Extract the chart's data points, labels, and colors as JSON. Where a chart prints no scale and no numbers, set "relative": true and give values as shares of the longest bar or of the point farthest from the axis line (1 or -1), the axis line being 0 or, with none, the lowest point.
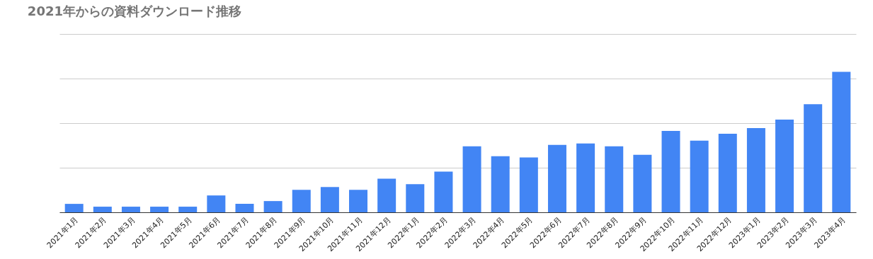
{
  "chart_data": {
    "type": "bar",
    "title": "2021年からの資料ダウンロード推移",
    "relative": true,
    "grid": "y",
    "categories": [
      "2021年1月",
      "2021年2月",
      "2021年3月",
      "2021年4月",
      "2021年5月",
      "2021年6月",
      "2021年7月",
      "2021年8月",
      "2021年9月",
      "2021年10月",
      "2021年11月",
      "2021年12月",
      "2022年1月",
      "2022年2月",
      "2022年3月",
      "2022年4月",
      "2022年5月",
      "2022年6月",
      "2022年7月",
      "2022年8月",
      "2022年9月",
      "2022年10月",
      "2022年11月",
      "2022年12月",
      "2023年1月",
      "2023年2月",
      "2023年3月",
      "2023年4月"
    ],
    "values": [
      0.06,
      0.04,
      0.04,
      0.04,
      0.04,
      0.12,
      0.06,
      0.08,
      0.16,
      0.18,
      0.16,
      0.24,
      0.2,
      0.29,
      0.47,
      0.4,
      0.39,
      0.48,
      0.49,
      0.47,
      0.41,
      0.58,
      0.51,
      0.56,
      0.6,
      0.66,
      0.77,
      1
    ],
    "color": "#4285f4"
  }
}
